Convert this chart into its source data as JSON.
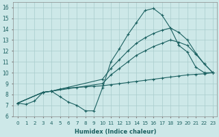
{
  "xlabel": "Humidex (Indice chaleur)",
  "xlim": [
    -0.5,
    23.5
  ],
  "ylim": [
    6.0,
    16.5
  ],
  "xticks": [
    0,
    1,
    2,
    3,
    4,
    5,
    6,
    7,
    8,
    9,
    10,
    11,
    12,
    13,
    14,
    15,
    16,
    17,
    18,
    19,
    20,
    21,
    22,
    23
  ],
  "yticks": [
    6,
    7,
    8,
    9,
    10,
    11,
    12,
    13,
    14,
    15,
    16
  ],
  "bg_color": "#cde8e8",
  "grid_color": "#a8cccc",
  "line_color": "#1a6060",
  "line1_x": [
    0,
    1,
    2,
    3,
    4,
    5,
    6,
    7,
    8,
    9,
    10,
    11,
    12,
    13,
    14,
    15,
    16,
    17,
    18,
    19,
    20,
    21,
    22,
    23
  ],
  "line1_y": [
    7.2,
    7.1,
    7.4,
    8.2,
    8.3,
    7.8,
    7.3,
    7.0,
    6.5,
    6.5,
    8.6,
    11.0,
    12.2,
    13.5,
    14.6,
    15.7,
    15.9,
    15.3,
    14.1,
    12.5,
    11.9,
    10.5,
    10.0,
    10.0
  ],
  "line2_x": [
    0,
    3,
    4,
    5,
    6,
    7,
    8,
    9,
    10,
    11,
    12,
    13,
    14,
    15,
    16,
    17,
    18,
    19,
    20,
    21,
    22,
    23
  ],
  "line2_y": [
    7.2,
    8.2,
    8.3,
    8.5,
    8.6,
    8.65,
    8.7,
    8.75,
    8.8,
    8.9,
    9.0,
    9.1,
    9.2,
    9.3,
    9.4,
    9.5,
    9.6,
    9.7,
    9.8,
    9.85,
    9.9,
    10.0
  ],
  "line3_x": [
    0,
    3,
    4,
    10,
    11,
    12,
    13,
    14,
    15,
    16,
    17,
    18,
    19,
    20,
    21,
    22,
    23
  ],
  "line3_y": [
    7.2,
    8.2,
    8.3,
    9.0,
    9.8,
    10.4,
    11.0,
    11.6,
    12.0,
    12.4,
    12.7,
    13.0,
    12.8,
    12.5,
    11.7,
    10.8,
    10.0
  ],
  "line4_x": [
    0,
    3,
    4,
    10,
    11,
    12,
    13,
    14,
    15,
    16,
    17,
    18,
    19,
    20,
    21,
    22,
    23
  ],
  "line4_y": [
    7.2,
    8.2,
    8.3,
    9.4,
    10.4,
    11.2,
    12.0,
    12.7,
    13.2,
    13.6,
    13.9,
    14.1,
    13.7,
    13.0,
    11.8,
    10.8,
    10.0
  ]
}
